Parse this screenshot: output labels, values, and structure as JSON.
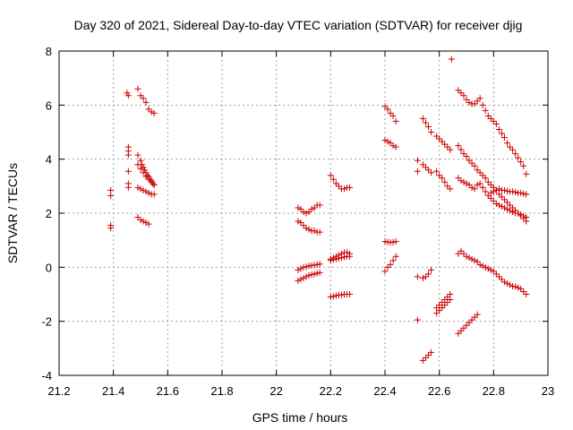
{
  "chart_data": {
    "type": "scatter",
    "title": "Day 320 of 2021, Sidereal Day-to-day VTEC variation (SDTVAR) for receiver djig",
    "xlabel": "GPS time / hours",
    "ylabel": "SDTVAR / TECUs",
    "xlim": [
      21.2,
      23
    ],
    "ylim": [
      -4,
      8
    ],
    "xticks": [
      "21.2",
      "21.4",
      "21.6",
      "21.8",
      "22",
      "22.2",
      "22.4",
      "22.6",
      "22.8",
      "23"
    ],
    "yticks": [
      "-4",
      "-2",
      "0",
      "2",
      "4",
      "6",
      "8"
    ],
    "grid": true,
    "marker": "+",
    "color": "#cc0000",
    "points": [
      [
        21.39,
        2.85
      ],
      [
        21.39,
        2.65
      ],
      [
        21.39,
        1.55
      ],
      [
        21.39,
        1.45
      ],
      [
        21.45,
        6.45
      ],
      [
        21.455,
        6.35
      ],
      [
        21.455,
        4.45
      ],
      [
        21.455,
        4.3
      ],
      [
        21.455,
        4.15
      ],
      [
        21.455,
        3.55
      ],
      [
        21.455,
        3.1
      ],
      [
        21.455,
        2.95
      ],
      [
        21.49,
        6.6
      ],
      [
        21.5,
        6.35
      ],
      [
        21.51,
        6.25
      ],
      [
        21.52,
        6.1
      ],
      [
        21.53,
        5.85
      ],
      [
        21.54,
        5.75
      ],
      [
        21.55,
        5.7
      ],
      [
        21.49,
        4.15
      ],
      [
        21.5,
        3.95
      ],
      [
        21.505,
        3.8
      ],
      [
        21.51,
        3.7
      ],
      [
        21.515,
        3.6
      ],
      [
        21.52,
        3.5
      ],
      [
        21.525,
        3.4
      ],
      [
        21.53,
        3.35
      ],
      [
        21.535,
        3.25
      ],
      [
        21.54,
        3.2
      ],
      [
        21.545,
        3.1
      ],
      [
        21.55,
        3.05
      ],
      [
        21.49,
        3.8
      ],
      [
        21.5,
        3.65
      ],
      [
        21.51,
        3.5
      ],
      [
        21.52,
        3.35
      ],
      [
        21.53,
        3.25
      ],
      [
        21.54,
        3.15
      ],
      [
        21.55,
        3.05
      ],
      [
        21.49,
        2.95
      ],
      [
        21.5,
        2.9
      ],
      [
        21.51,
        2.85
      ],
      [
        21.52,
        2.8
      ],
      [
        21.53,
        2.75
      ],
      [
        21.54,
        2.7
      ],
      [
        21.55,
        2.7
      ],
      [
        21.49,
        1.85
      ],
      [
        21.5,
        1.75
      ],
      [
        21.51,
        1.7
      ],
      [
        21.52,
        1.65
      ],
      [
        21.53,
        1.6
      ],
      [
        22.08,
        2.2
      ],
      [
        22.09,
        2.15
      ],
      [
        22.1,
        2.05
      ],
      [
        22.11,
        2.0
      ],
      [
        22.12,
        2.05
      ],
      [
        22.13,
        2.15
      ],
      [
        22.14,
        2.2
      ],
      [
        22.15,
        2.3
      ],
      [
        22.16,
        2.3
      ],
      [
        22.08,
        1.7
      ],
      [
        22.09,
        1.65
      ],
      [
        22.1,
        1.55
      ],
      [
        22.11,
        1.45
      ],
      [
        22.12,
        1.4
      ],
      [
        22.13,
        1.35
      ],
      [
        22.14,
        1.35
      ],
      [
        22.15,
        1.3
      ],
      [
        22.16,
        1.3
      ],
      [
        22.08,
        -0.1
      ],
      [
        22.09,
        -0.05
      ],
      [
        22.1,
        0.0
      ],
      [
        22.11,
        0.02
      ],
      [
        22.12,
        0.05
      ],
      [
        22.13,
        0.07
      ],
      [
        22.14,
        0.08
      ],
      [
        22.15,
        0.1
      ],
      [
        22.16,
        0.12
      ],
      [
        22.08,
        -0.5
      ],
      [
        22.09,
        -0.45
      ],
      [
        22.1,
        -0.4
      ],
      [
        22.11,
        -0.35
      ],
      [
        22.12,
        -0.3
      ],
      [
        22.13,
        -0.27
      ],
      [
        22.14,
        -0.25
      ],
      [
        22.15,
        -0.22
      ],
      [
        22.16,
        -0.2
      ],
      [
        22.2,
        3.4
      ],
      [
        22.21,
        3.25
      ],
      [
        22.22,
        3.1
      ],
      [
        22.23,
        3.0
      ],
      [
        22.24,
        2.9
      ],
      [
        22.25,
        2.9
      ],
      [
        22.26,
        2.95
      ],
      [
        22.27,
        2.95
      ],
      [
        22.2,
        0.3
      ],
      [
        22.21,
        0.35
      ],
      [
        22.22,
        0.4
      ],
      [
        22.23,
        0.45
      ],
      [
        22.24,
        0.5
      ],
      [
        22.25,
        0.55
      ],
      [
        22.26,
        0.55
      ],
      [
        22.27,
        0.5
      ],
      [
        22.2,
        0.25
      ],
      [
        22.21,
        0.28
      ],
      [
        22.22,
        0.3
      ],
      [
        22.23,
        0.33
      ],
      [
        22.24,
        0.35
      ],
      [
        22.25,
        0.38
      ],
      [
        22.26,
        0.4
      ],
      [
        22.27,
        0.4
      ],
      [
        22.2,
        -1.1
      ],
      [
        22.21,
        -1.08
      ],
      [
        22.22,
        -1.05
      ],
      [
        22.23,
        -1.03
      ],
      [
        22.24,
        -1.02
      ],
      [
        22.25,
        -1.0
      ],
      [
        22.26,
        -1.0
      ],
      [
        22.27,
        -1.0
      ],
      [
        22.4,
        5.95
      ],
      [
        22.41,
        5.85
      ],
      [
        22.42,
        5.7
      ],
      [
        22.43,
        5.6
      ],
      [
        22.44,
        5.4
      ],
      [
        22.4,
        4.7
      ],
      [
        22.41,
        4.65
      ],
      [
        22.42,
        4.6
      ],
      [
        22.43,
        4.5
      ],
      [
        22.44,
        4.45
      ],
      [
        22.4,
        0.95
      ],
      [
        22.41,
        0.93
      ],
      [
        22.42,
        0.92
      ],
      [
        22.43,
        0.93
      ],
      [
        22.44,
        0.95
      ],
      [
        22.4,
        -0.15
      ],
      [
        22.41,
        0.0
      ],
      [
        22.42,
        0.1
      ],
      [
        22.43,
        0.25
      ],
      [
        22.44,
        0.4
      ],
      [
        22.52,
        3.95
      ],
      [
        22.52,
        3.55
      ],
      [
        22.52,
        -0.35
      ],
      [
        22.52,
        -1.95
      ],
      [
        22.54,
        5.5
      ],
      [
        22.55,
        5.35
      ],
      [
        22.56,
        5.2
      ],
      [
        22.57,
        5.0
      ],
      [
        22.54,
        3.8
      ],
      [
        22.55,
        3.7
      ],
      [
        22.56,
        3.6
      ],
      [
        22.57,
        3.5
      ],
      [
        22.54,
        -0.4
      ],
      [
        22.55,
        -0.35
      ],
      [
        22.56,
        -0.25
      ],
      [
        22.57,
        -0.1
      ],
      [
        22.54,
        -3.45
      ],
      [
        22.55,
        -3.35
      ],
      [
        22.56,
        -3.25
      ],
      [
        22.57,
        -3.15
      ],
      [
        22.59,
        4.85
      ],
      [
        22.6,
        4.75
      ],
      [
        22.61,
        4.65
      ],
      [
        22.62,
        4.55
      ],
      [
        22.63,
        4.45
      ],
      [
        22.64,
        4.35
      ],
      [
        22.59,
        3.55
      ],
      [
        22.6,
        3.4
      ],
      [
        22.61,
        3.3
      ],
      [
        22.62,
        3.15
      ],
      [
        22.63,
        3.0
      ],
      [
        22.64,
        2.9
      ],
      [
        22.59,
        -1.5
      ],
      [
        22.6,
        -1.4
      ],
      [
        22.61,
        -1.3
      ],
      [
        22.62,
        -1.2
      ],
      [
        22.63,
        -1.1
      ],
      [
        22.64,
        -1.0
      ],
      [
        22.59,
        -1.7
      ],
      [
        22.6,
        -1.6
      ],
      [
        22.61,
        -1.5
      ],
      [
        22.62,
        -1.4
      ],
      [
        22.63,
        -1.3
      ],
      [
        22.64,
        -1.2
      ],
      [
        22.645,
        7.7
      ],
      [
        22.67,
        6.55
      ],
      [
        22.68,
        6.45
      ],
      [
        22.69,
        6.35
      ],
      [
        22.7,
        6.2
      ],
      [
        22.71,
        6.1
      ],
      [
        22.72,
        6.05
      ],
      [
        22.73,
        6.05
      ],
      [
        22.74,
        6.15
      ],
      [
        22.75,
        6.25
      ],
      [
        22.76,
        6.0
      ],
      [
        22.77,
        5.8
      ],
      [
        22.78,
        5.6
      ],
      [
        22.79,
        5.5
      ],
      [
        22.8,
        5.4
      ],
      [
        22.81,
        5.3
      ],
      [
        22.82,
        5.1
      ],
      [
        22.83,
        4.95
      ],
      [
        22.84,
        4.8
      ],
      [
        22.85,
        4.6
      ],
      [
        22.86,
        4.45
      ],
      [
        22.87,
        4.35
      ],
      [
        22.88,
        4.2
      ],
      [
        22.89,
        4.05
      ],
      [
        22.9,
        3.9
      ],
      [
        22.91,
        3.75
      ],
      [
        22.92,
        3.45
      ],
      [
        22.67,
        4.5
      ],
      [
        22.68,
        4.35
      ],
      [
        22.69,
        4.2
      ],
      [
        22.7,
        4.1
      ],
      [
        22.71,
        3.95
      ],
      [
        22.72,
        3.85
      ],
      [
        22.73,
        3.75
      ],
      [
        22.74,
        3.6
      ],
      [
        22.75,
        3.5
      ],
      [
        22.76,
        3.4
      ],
      [
        22.77,
        3.3
      ],
      [
        22.78,
        3.15
      ],
      [
        22.79,
        3.05
      ],
      [
        22.8,
        2.95
      ],
      [
        22.81,
        2.85
      ],
      [
        22.82,
        2.7
      ],
      [
        22.83,
        2.6
      ],
      [
        22.84,
        2.5
      ],
      [
        22.85,
        2.4
      ],
      [
        22.86,
        2.3
      ],
      [
        22.87,
        2.2
      ],
      [
        22.88,
        2.1
      ],
      [
        22.89,
        2.0
      ],
      [
        22.9,
        1.9
      ],
      [
        22.91,
        1.8
      ],
      [
        22.92,
        1.7
      ],
      [
        22.67,
        3.3
      ],
      [
        22.68,
        3.2
      ],
      [
        22.69,
        3.15
      ],
      [
        22.7,
        3.1
      ],
      [
        22.71,
        3.05
      ],
      [
        22.72,
        2.95
      ],
      [
        22.73,
        2.9
      ],
      [
        22.74,
        3.05
      ],
      [
        22.75,
        3.1
      ],
      [
        22.76,
        2.95
      ],
      [
        22.77,
        2.8
      ],
      [
        22.78,
        2.65
      ],
      [
        22.79,
        2.55
      ],
      [
        22.8,
        2.45
      ],
      [
        22.81,
        2.35
      ],
      [
        22.82,
        2.3
      ],
      [
        22.83,
        2.25
      ],
      [
        22.84,
        2.2
      ],
      [
        22.85,
        2.15
      ],
      [
        22.86,
        2.1
      ],
      [
        22.87,
        2.05
      ],
      [
        22.88,
        2.0
      ],
      [
        22.89,
        2.0
      ],
      [
        22.9,
        1.95
      ],
      [
        22.91,
        1.9
      ],
      [
        22.92,
        1.85
      ],
      [
        22.79,
        2.75
      ],
      [
        22.8,
        2.8
      ],
      [
        22.81,
        2.85
      ],
      [
        22.82,
        2.9
      ],
      [
        22.83,
        2.85
      ],
      [
        22.84,
        2.85
      ],
      [
        22.85,
        2.82
      ],
      [
        22.86,
        2.8
      ],
      [
        22.87,
        2.8
      ],
      [
        22.88,
        2.78
      ],
      [
        22.89,
        2.75
      ],
      [
        22.9,
        2.75
      ],
      [
        22.91,
        2.72
      ],
      [
        22.92,
        2.7
      ],
      [
        22.67,
        0.5
      ],
      [
        22.68,
        0.6
      ],
      [
        22.69,
        0.5
      ],
      [
        22.7,
        0.4
      ],
      [
        22.71,
        0.35
      ],
      [
        22.72,
        0.3
      ],
      [
        22.73,
        0.25
      ],
      [
        22.74,
        0.2
      ],
      [
        22.75,
        0.1
      ],
      [
        22.76,
        0.05
      ],
      [
        22.77,
        0.0
      ],
      [
        22.78,
        -0.05
      ],
      [
        22.79,
        -0.1
      ],
      [
        22.8,
        -0.15
      ],
      [
        22.81,
        -0.25
      ],
      [
        22.82,
        -0.35
      ],
      [
        22.83,
        -0.45
      ],
      [
        22.84,
        -0.55
      ],
      [
        22.85,
        -0.6
      ],
      [
        22.86,
        -0.65
      ],
      [
        22.87,
        -0.7
      ],
      [
        22.88,
        -0.72
      ],
      [
        22.89,
        -0.75
      ],
      [
        22.9,
        -0.8
      ],
      [
        22.91,
        -0.9
      ],
      [
        22.92,
        -1.0
      ],
      [
        22.67,
        -2.45
      ],
      [
        22.68,
        -2.35
      ],
      [
        22.69,
        -2.25
      ],
      [
        22.7,
        -2.15
      ],
      [
        22.71,
        -2.05
      ],
      [
        22.72,
        -1.95
      ],
      [
        22.73,
        -1.85
      ],
      [
        22.74,
        -1.75
      ]
    ]
  }
}
